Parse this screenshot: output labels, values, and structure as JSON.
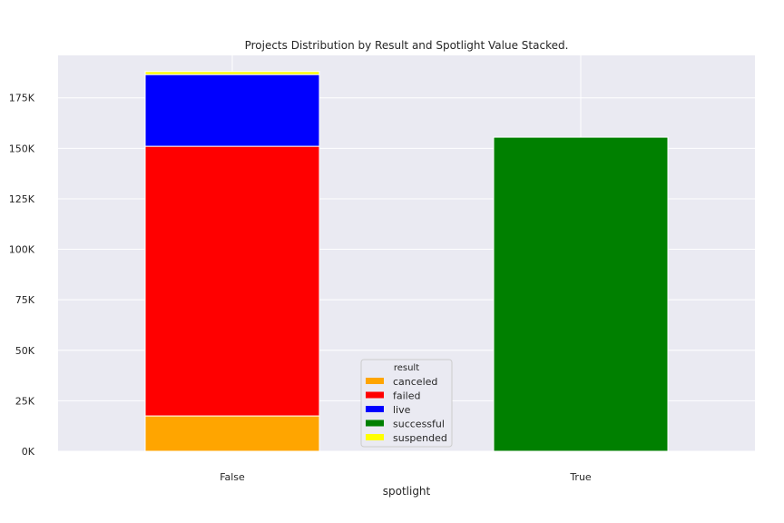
{
  "chart_data": {
    "type": "bar",
    "stacked": true,
    "title": "Projects Distribution by Result and Spotlight Value Stacked.",
    "xlabel": "spotlight",
    "ylabel": "",
    "categories": [
      "False",
      "True"
    ],
    "ylim": [
      0,
      196000
    ],
    "yticks": [
      0,
      25000,
      50000,
      75000,
      100000,
      125000,
      150000,
      175000
    ],
    "ytick_labels": [
      "0K",
      "25K",
      "50K",
      "75K",
      "100K",
      "125K",
      "150K",
      "175K"
    ],
    "grid": true,
    "legend": {
      "title": "result",
      "position": "bottom-center"
    },
    "series": [
      {
        "name": "canceled",
        "color": "#ffa500",
        "values": [
          17500,
          0
        ]
      },
      {
        "name": "failed",
        "color": "#ff0000",
        "values": [
          133500,
          0
        ]
      },
      {
        "name": "live",
        "color": "#0000ff",
        "values": [
          35500,
          0
        ]
      },
      {
        "name": "successful",
        "color": "#008000",
        "values": [
          0,
          155500
        ]
      },
      {
        "name": "suspended",
        "color": "#ffff00",
        "values": [
          1500,
          0
        ]
      }
    ]
  }
}
